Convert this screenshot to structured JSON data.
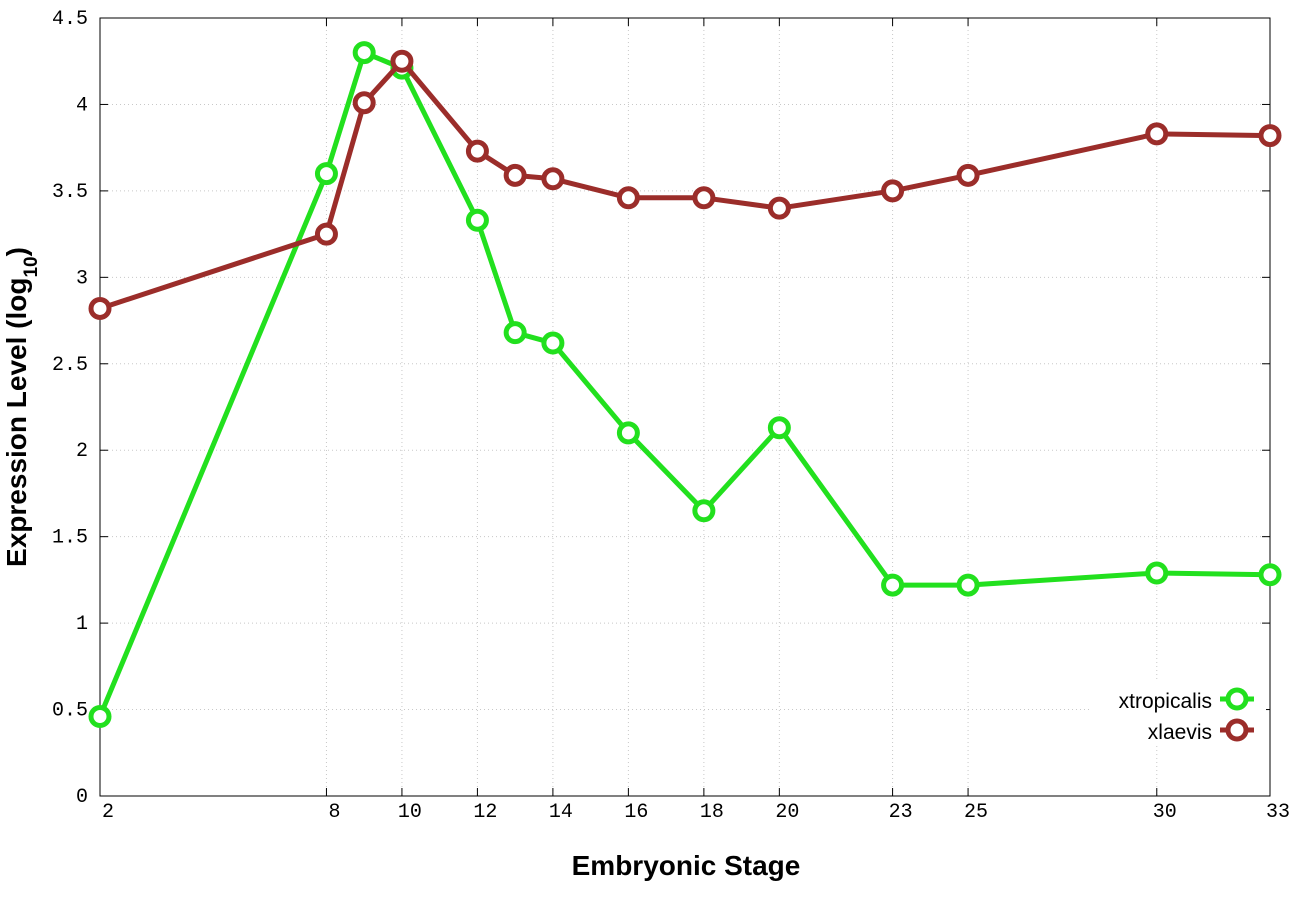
{
  "chart_data": {
    "type": "line",
    "xlabel": "Embryonic Stage",
    "ylabel_main": "Expression Level (log",
    "ylabel_sub": "10",
    "ylabel_close": ")",
    "x": [
      2,
      8,
      9,
      10,
      12,
      13,
      14,
      16,
      18,
      20,
      23,
      25,
      30,
      33
    ],
    "x_tick_labels": [
      "2",
      "8",
      "10",
      "12",
      "14",
      "16",
      "18",
      "20",
      "23",
      "25",
      "30",
      "33"
    ],
    "x_tick_values": [
      2,
      8,
      10,
      12,
      14,
      16,
      18,
      20,
      23,
      25,
      30,
      33
    ],
    "xlim": [
      2,
      33
    ],
    "ylim": [
      0,
      4.5
    ],
    "y_ticks": [
      "0",
      "0.5",
      "1",
      "1.5",
      "2",
      "2.5",
      "3",
      "3.5",
      "4",
      "4.5"
    ],
    "grid": true,
    "legend_position": "bottom-right",
    "series": [
      {
        "name": "xtropicalis",
        "color": "#22e01e",
        "values": [
          0.46,
          3.6,
          4.3,
          4.21,
          3.33,
          2.68,
          2.62,
          2.1,
          1.65,
          2.13,
          1.22,
          1.22,
          1.29,
          1.28
        ]
      },
      {
        "name": "xlaevis",
        "color": "#9b2d2a",
        "values": [
          2.82,
          3.25,
          4.01,
          4.25,
          3.73,
          3.59,
          3.57,
          3.46,
          3.46,
          3.4,
          3.5,
          3.59,
          3.83,
          3.82
        ]
      }
    ]
  }
}
